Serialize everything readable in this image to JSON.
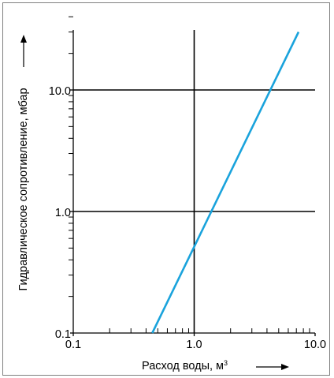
{
  "chart_data": {
    "type": "line",
    "xlabel": "Расход воды, м",
    "xlabel_sup": "3",
    "ylabel": "Гидравлическое сопротивление, мбар",
    "x_scale": "log",
    "y_scale": "log",
    "xlim": [
      0.1,
      10.0
    ],
    "ylim": [
      0.1,
      40.0
    ],
    "x_ticks": [
      "0.1",
      "1.0",
      "10.0"
    ],
    "y_ticks": [
      "0.1",
      "1.0",
      "10.0"
    ],
    "grid": true,
    "legend": "none",
    "series": [
      {
        "x": [
          0.45,
          7.3
        ],
        "y": [
          0.1,
          30.0
        ],
        "color": "#1aa3dc"
      }
    ]
  }
}
